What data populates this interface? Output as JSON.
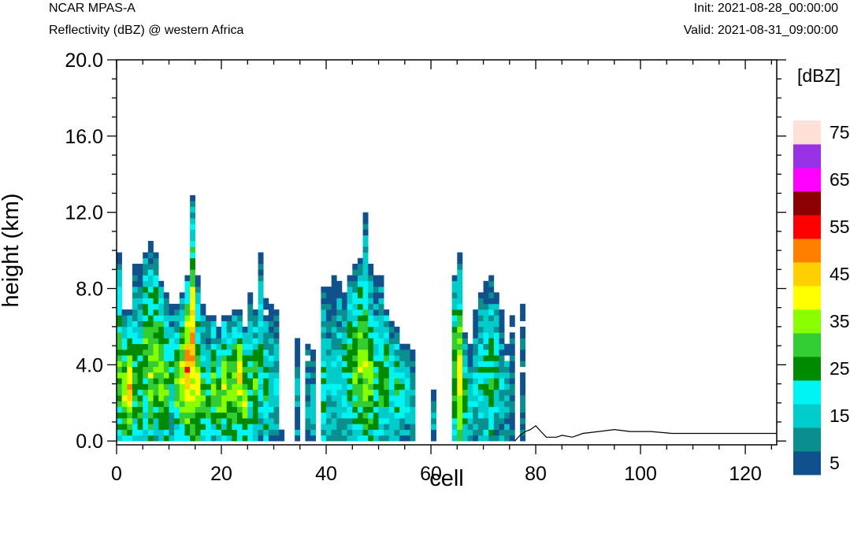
{
  "header": {
    "model": "NCAR MPAS-A",
    "field": "Reflectivity (dBZ) @ western Africa",
    "init": "Init: 2021-08-28_00:00:00",
    "valid": "Valid: 2021-08-31_09:00:00"
  },
  "chart_data": {
    "type": "heatmap",
    "title": "Reflectivity (dBZ) @ western Africa",
    "xlabel": "cell",
    "ylabel": "height (km)",
    "xlim": [
      0,
      126
    ],
    "ylim": [
      -0.2,
      20.0
    ],
    "x_ticks": [
      "0",
      "20",
      "40",
      "60",
      "80",
      "100",
      "120"
    ],
    "y_ticks": [
      "0.0",
      "4.0",
      "8.0",
      "12.0",
      "16.0",
      "20.0"
    ],
    "cell_height_km": 0.3,
    "colorbar": {
      "title": "[dBZ]",
      "levels": [
        5,
        10,
        15,
        20,
        25,
        30,
        35,
        40,
        45,
        50,
        55,
        60,
        65,
        70,
        75
      ],
      "labels": [
        "5",
        "15",
        "25",
        "35",
        "45",
        "55",
        "65",
        "75"
      ],
      "colors": [
        "#10508c",
        "#0a8e8e",
        "#00cccc",
        "#00f4f4",
        "#008a00",
        "#33cc33",
        "#88ff00",
        "#ffff00",
        "#ffd000",
        "#ff8000",
        "#ff0000",
        "#8c0000",
        "#ff00ff",
        "#9932e6",
        "#ffe0d8"
      ]
    },
    "columns": [
      {
        "x": 0,
        "top_km": 9.9,
        "peak_dbz": 35
      },
      {
        "x": 1,
        "top_km": 7.0,
        "peak_dbz": 40
      },
      {
        "x": 2,
        "top_km": 7.0,
        "peak_dbz": 50
      },
      {
        "x": 3,
        "top_km": 9.3,
        "peak_dbz": 30
      },
      {
        "x": 4,
        "top_km": 9.3,
        "peak_dbz": 30
      },
      {
        "x": 5,
        "top_km": 9.9,
        "peak_dbz": 35
      },
      {
        "x": 6,
        "top_km": 10.5,
        "peak_dbz": 40
      },
      {
        "x": 7,
        "top_km": 9.9,
        "peak_dbz": 35
      },
      {
        "x": 8,
        "top_km": 8.4,
        "peak_dbz": 40
      },
      {
        "x": 9,
        "top_km": 7.8,
        "peak_dbz": 35
      },
      {
        "x": 10,
        "top_km": 7.2,
        "peak_dbz": 25
      },
      {
        "x": 11,
        "top_km": 7.2,
        "peak_dbz": 35
      },
      {
        "x": 12,
        "top_km": 7.8,
        "peak_dbz": 45
      },
      {
        "x": 13,
        "top_km": 8.7,
        "peak_dbz": 55
      },
      {
        "x": 14,
        "top_km": 12.8,
        "peak_dbz": 50
      },
      {
        "x": 15,
        "top_km": 8.7,
        "peak_dbz": 40
      },
      {
        "x": 16,
        "top_km": 7.2,
        "peak_dbz": 35
      },
      {
        "x": 17,
        "top_km": 6.6,
        "peak_dbz": 30
      },
      {
        "x": 18,
        "top_km": 6.6,
        "peak_dbz": 35
      },
      {
        "x": 19,
        "top_km": 6.0,
        "peak_dbz": 35
      },
      {
        "x": 20,
        "top_km": 6.6,
        "peak_dbz": 40
      },
      {
        "x": 21,
        "top_km": 6.6,
        "peak_dbz": 35
      },
      {
        "x": 22,
        "top_km": 6.9,
        "peak_dbz": 40
      },
      {
        "x": 23,
        "top_km": 6.9,
        "peak_dbz": 45
      },
      {
        "x": 24,
        "top_km": 6.0,
        "peak_dbz": 40
      },
      {
        "x": 25,
        "top_km": 7.8,
        "peak_dbz": 30
      },
      {
        "x": 26,
        "top_km": 6.9,
        "peak_dbz": 35
      },
      {
        "x": 27,
        "top_km": 9.9,
        "peak_dbz": 25
      },
      {
        "x": 28,
        "top_km": 7.5,
        "peak_dbz": 30
      },
      {
        "x": 29,
        "top_km": 7.2,
        "peak_dbz": 20
      },
      {
        "x": 30,
        "top_km": 7.0,
        "peak_dbz": 20
      },
      {
        "x": 31,
        "top_km": 0.6,
        "peak_dbz": 5
      },
      {
        "x": 34,
        "top_km": 5.4,
        "peak_dbz": 15
      },
      {
        "x": 36,
        "top_km": 5.1,
        "peak_dbz": 15
      },
      {
        "x": 37,
        "top_km": 4.8,
        "peak_dbz": 15
      },
      {
        "x": 39,
        "top_km": 8.1,
        "peak_dbz": 25
      },
      {
        "x": 40,
        "top_km": 8.1,
        "peak_dbz": 20
      },
      {
        "x": 41,
        "top_km": 8.7,
        "peak_dbz": 20
      },
      {
        "x": 42,
        "top_km": 8.4,
        "peak_dbz": 20
      },
      {
        "x": 43,
        "top_km": 7.8,
        "peak_dbz": 25
      },
      {
        "x": 44,
        "top_km": 8.7,
        "peak_dbz": 30
      },
      {
        "x": 45,
        "top_km": 9.3,
        "peak_dbz": 35
      },
      {
        "x": 46,
        "top_km": 9.6,
        "peak_dbz": 40
      },
      {
        "x": 47,
        "top_km": 12.0,
        "peak_dbz": 40
      },
      {
        "x": 48,
        "top_km": 9.3,
        "peak_dbz": 35
      },
      {
        "x": 49,
        "top_km": 8.7,
        "peak_dbz": 30
      },
      {
        "x": 50,
        "top_km": 8.7,
        "peak_dbz": 30
      },
      {
        "x": 51,
        "top_km": 6.9,
        "peak_dbz": 30
      },
      {
        "x": 52,
        "top_km": 6.3,
        "peak_dbz": 25
      },
      {
        "x": 53,
        "top_km": 6.0,
        "peak_dbz": 30
      },
      {
        "x": 54,
        "top_km": 5.1,
        "peak_dbz": 25
      },
      {
        "x": 55,
        "top_km": 5.1,
        "peak_dbz": 20
      },
      {
        "x": 56,
        "top_km": 4.8,
        "peak_dbz": 15
      },
      {
        "x": 60,
        "top_km": 2.7,
        "peak_dbz": 15
      },
      {
        "x": 64,
        "top_km": 8.7,
        "peak_dbz": 35
      },
      {
        "x": 65,
        "top_km": 9.9,
        "peak_dbz": 45
      },
      {
        "x": 66,
        "top_km": 5.7,
        "peak_dbz": 30
      },
      {
        "x": 67,
        "top_km": 5.1,
        "peak_dbz": 20
      },
      {
        "x": 68,
        "top_km": 6.9,
        "peak_dbz": 20
      },
      {
        "x": 69,
        "top_km": 7.8,
        "peak_dbz": 25
      },
      {
        "x": 70,
        "top_km": 8.4,
        "peak_dbz": 25
      },
      {
        "x": 71,
        "top_km": 8.7,
        "peak_dbz": 30
      },
      {
        "x": 72,
        "top_km": 7.8,
        "peak_dbz": 25
      },
      {
        "x": 73,
        "top_km": 7.0,
        "peak_dbz": 20
      },
      {
        "x": 74,
        "top_km": 5.1,
        "peak_dbz": 15
      },
      {
        "x": 75,
        "top_km": 6.6,
        "peak_dbz": 10
      },
      {
        "x": 77,
        "top_km": 7.2,
        "peak_dbz": 10
      }
    ],
    "terrain_km": [
      [
        76,
        0.0
      ],
      [
        77,
        0.3
      ],
      [
        78,
        0.5
      ],
      [
        79,
        0.6
      ],
      [
        80,
        0.8
      ],
      [
        81,
        0.5
      ],
      [
        82,
        0.2
      ],
      [
        84,
        0.2
      ],
      [
        85,
        0.3
      ],
      [
        87,
        0.2
      ],
      [
        89,
        0.4
      ],
      [
        92,
        0.5
      ],
      [
        95,
        0.6
      ],
      [
        98,
        0.5
      ],
      [
        102,
        0.5
      ],
      [
        106,
        0.4
      ],
      [
        110,
        0.4
      ],
      [
        115,
        0.4
      ],
      [
        120,
        0.4
      ],
      [
        126,
        0.4
      ]
    ]
  }
}
